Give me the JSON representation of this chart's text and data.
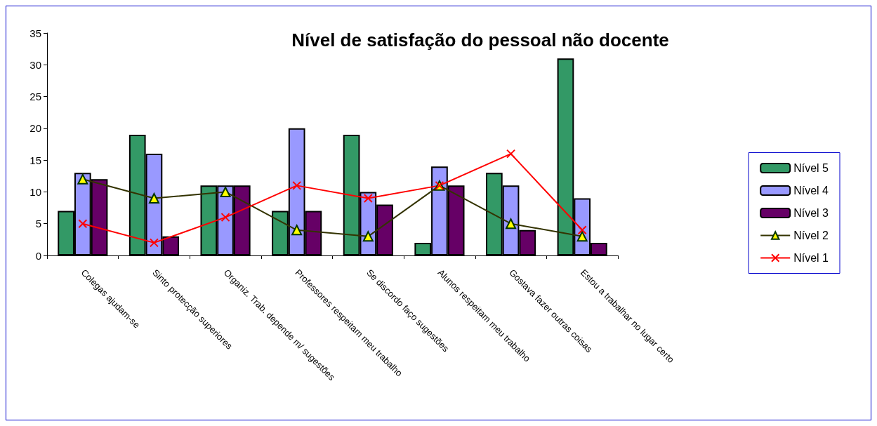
{
  "chart_data": {
    "type": "bar",
    "title": "Nível de satisfação do pessoal não docente",
    "categories": [
      "Colegas ajudam-se",
      "Sinto protecção superiores",
      "Organiz. Trab. depende m/ sugestões",
      "Professores respeitam meu trabalho",
      "Se discordo faço sugestões",
      "Alunos respeitam meu trabalho",
      "Gostava fazer outras coisas",
      "Estou a trabalhar no lugar certo"
    ],
    "series": [
      {
        "name": "Nível 5",
        "color": "#339966",
        "values": [
          7,
          19,
          11,
          7,
          19,
          2,
          13,
          31
        ]
      },
      {
        "name": "Nível 4",
        "color": "#9999ff",
        "values": [
          13,
          16,
          11,
          20,
          10,
          14,
          11,
          9
        ]
      },
      {
        "name": "Nível 3",
        "color": "#660066",
        "values": [
          12,
          3,
          11,
          7,
          8,
          11,
          4,
          2
        ]
      },
      {
        "name": "Nível 2",
        "type": "line",
        "color": "#333300",
        "marker": "triangle",
        "values": [
          12,
          9,
          10,
          4,
          3,
          11,
          5,
          3
        ]
      },
      {
        "name": "Nível 1",
        "type": "line",
        "color": "#ff0000",
        "marker": "cross",
        "values": [
          5,
          2,
          6,
          11,
          9,
          11,
          16,
          4
        ]
      }
    ],
    "ylim": [
      0,
      35
    ],
    "yticks": [
      0,
      5,
      10,
      15,
      20,
      25,
      30,
      35
    ],
    "grid": false,
    "legend": "right"
  }
}
